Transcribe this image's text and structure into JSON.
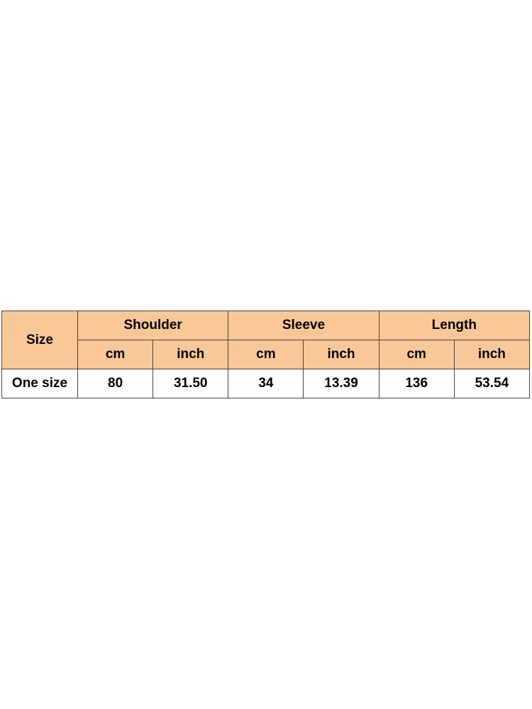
{
  "table": {
    "header_color": "#FAC898",
    "size_label": "Size",
    "groups": [
      "Shoulder",
      "Sleeve",
      "Length"
    ],
    "units": [
      "cm",
      "inch",
      "cm",
      "inch",
      "cm",
      "inch"
    ],
    "rows": [
      {
        "size": "One size",
        "values": [
          "80",
          "31.50",
          "34",
          "13.39",
          "136",
          "53.54"
        ]
      }
    ]
  }
}
